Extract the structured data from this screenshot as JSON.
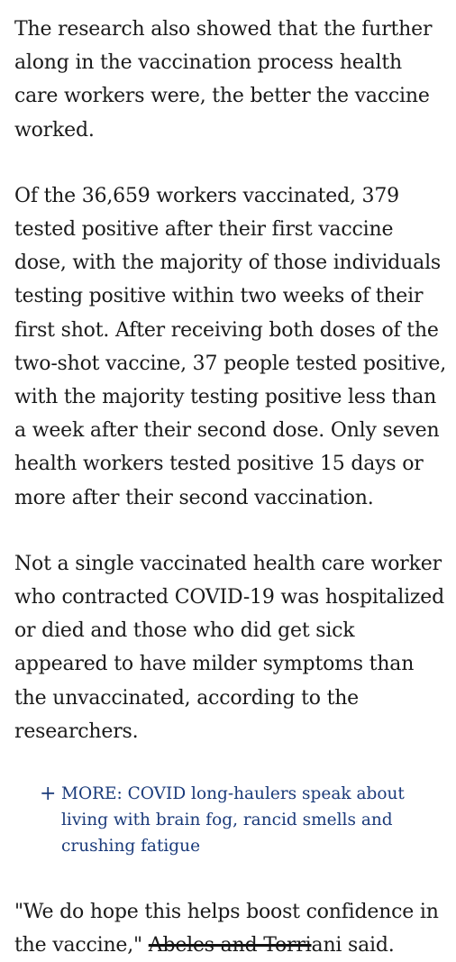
{
  "article": {
    "paragraphs": [
      "The research also showed that the further along in the vaccination process health care workers were, the better the vaccine worked.",
      "Of the 36,659 workers vaccinated, 379 tested positive after their first vaccine dose, with the majority of those individuals testing positive within two weeks of their first shot. After receiving both doses of the two-shot vaccine, 37 people tested positive, with the majority testing positive less than a week after their second dose. Only seven health workers tested positive 15 days or more after their second vaccination.",
      "Not a single vaccinated health care worker who contracted COVID-19 was hospitalized or died and those who did get sick appeared to have milder symptoms than the unvaccinated, according to the researchers."
    ],
    "more_link": {
      "icon": "+",
      "text": "MORE: COVID long-haulers speak about living with brain fog, rancid smells and crushing fatigue"
    },
    "quote": {
      "before": "\"We do hope this helps boost confidence in the vaccine,\" ",
      "struck": "Abeles and Torri",
      "after": "ani said."
    }
  }
}
